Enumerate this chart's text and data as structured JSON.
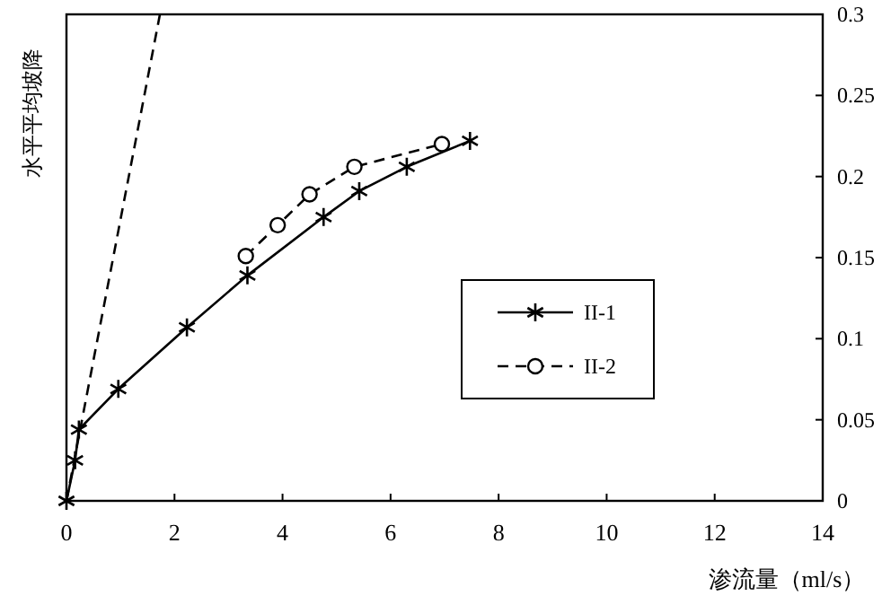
{
  "chart_data": {
    "type": "line",
    "xlabel": "渗流量（ml/s）",
    "ylabel": "水平平均坡降",
    "xlim": [
      0,
      14
    ],
    "xticks": [
      0,
      2,
      4,
      6,
      8,
      10,
      12,
      14
    ],
    "ylim": [
      0,
      0.3
    ],
    "yticks": [
      0,
      0.05,
      0.1,
      0.15,
      0.2,
      0.25,
      0.3
    ],
    "grid": false,
    "legend": "right",
    "series": [
      {
        "name": "II-1",
        "color": "#000000",
        "marker": "cross",
        "line_style": "solid",
        "x": [
          0,
          0.16,
          0.23,
          0.96,
          2.23,
          3.35,
          4.76,
          5.42,
          6.3,
          7.47
        ],
        "values": [
          0,
          0.025,
          0.044,
          0.069,
          0.107,
          0.139,
          0.175,
          0.191,
          0.206,
          0.222
        ]
      },
      {
        "name": "II-2",
        "color": "#000000",
        "marker": "circle",
        "line_style": "dashed",
        "x": [
          3.32,
          3.91,
          4.5,
          5.33,
          6.95
        ],
        "values": [
          0.151,
          0.17,
          0.189,
          0.206,
          0.22
        ]
      },
      {
        "color": "#000000",
        "marker": "none",
        "line_style": "dashed",
        "x": [
          0,
          1.73
        ],
        "values": [
          0,
          0.3
        ]
      }
    ]
  }
}
